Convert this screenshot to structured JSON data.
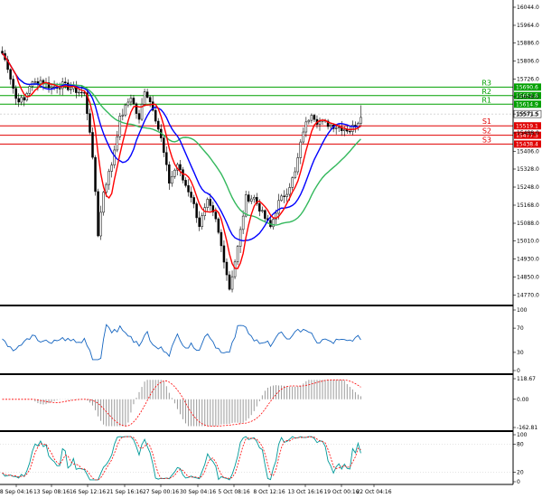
{
  "chart_data": {
    "type": "candlestick",
    "dates": [
      "8 Sep 04:16",
      "13 Sep 08:16",
      "16 Sep 12:16",
      "21 Sep 16:16",
      "27 Sep 00:16",
      "30 Sep 04:16",
      "5 Oct 08:16",
      "8 Oct 12:16",
      "13 Oct 16:16",
      "19 Oct 00:16",
      "22 Oct 04:16"
    ],
    "price_axis": {
      "ticks": [
        "16044.0",
        "15964.0",
        "15886.0",
        "15806.0",
        "15726.0",
        "15648.0",
        "15571.5",
        "15488.0",
        "15406.0",
        "15328.0",
        "15248.0",
        "15168.0",
        "15088.0",
        "15010.0",
        "14930.0",
        "14850.0",
        "14770.0"
      ],
      "range": [
        14740,
        16060
      ]
    },
    "levels": [
      {
        "name": "R3",
        "value": 15690.6,
        "tag": "15690.6",
        "color": "#00a000"
      },
      {
        "name": "R2",
        "value": 15652.8,
        "tag": "15652.8",
        "color": "#00a000"
      },
      {
        "name": "R1",
        "value": 15614.9,
        "tag": "15614.9",
        "color": "#00a000"
      },
      {
        "name": "S1",
        "value": 15519.1,
        "tag": "15519.1",
        "color": "#e00000"
      },
      {
        "name": "S2",
        "value": 15477.3,
        "tag": "15477.3",
        "color": "#e00000"
      },
      {
        "name": "S3",
        "value": 15438.4,
        "tag": "15438.4",
        "color": "#e00000"
      }
    ],
    "current_price": {
      "value": 15571.5,
      "tag": "15571.5"
    },
    "ma_colors": {
      "fast": "#ff0000",
      "medium": "#0000ff",
      "slow": "#33b85c"
    },
    "indicators": [
      {
        "pane": "rsi",
        "ticks": [
          "100",
          "70",
          "30",
          "0"
        ],
        "range": [
          0,
          100
        ],
        "color": "#1565c0"
      },
      {
        "pane": "macd",
        "ticks": [
          "118.67",
          "0.00",
          "-162.81"
        ],
        "range": [
          -162.81,
          118.67
        ],
        "color": "#ff0000"
      },
      {
        "pane": "stochastic",
        "ticks": [
          "100",
          "80",
          "20",
          "0"
        ],
        "range": [
          0,
          100
        ],
        "colors": [
          "#009999",
          "#ff0000"
        ]
      }
    ]
  }
}
